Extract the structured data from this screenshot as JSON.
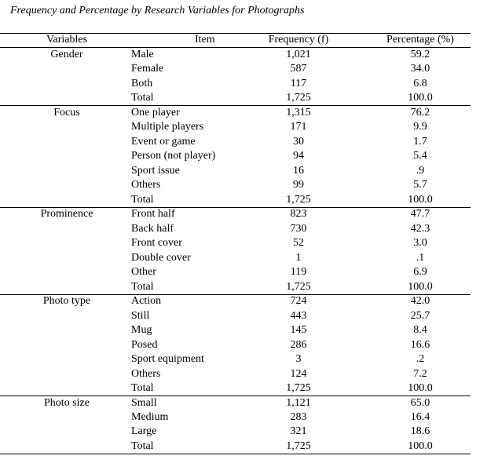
{
  "title": "Frequency and Percentage by Research Variables for Photographs",
  "table": {
    "headers": [
      "Variables",
      "Item",
      "Frequency (f)",
      "Percentage (%)"
    ],
    "groups": [
      {
        "variable": "Gender",
        "rows": [
          [
            "Male",
            "1,021",
            "59.2"
          ],
          [
            "Female",
            "587",
            "34.0"
          ],
          [
            "Both",
            "117",
            "6.8"
          ],
          [
            "Total",
            "1,725",
            "100.0"
          ]
        ]
      },
      {
        "variable": "Focus",
        "rows": [
          [
            "One player",
            "1,315",
            "76.2"
          ],
          [
            "Multiple players",
            "171",
            "9.9"
          ],
          [
            "Event or game",
            "30",
            "1.7"
          ],
          [
            "Person (not player)",
            "94",
            "5.4"
          ],
          [
            "Sport issue",
            "16",
            ".9"
          ],
          [
            "Others",
            "99",
            "5.7"
          ],
          [
            "Total",
            "1,725",
            "100.0"
          ]
        ]
      },
      {
        "variable": "Prominence",
        "rows": [
          [
            "Front half",
            "823",
            "47.7"
          ],
          [
            "Back half",
            "730",
            "42.3"
          ],
          [
            "Front cover",
            "52",
            "3.0"
          ],
          [
            "Double cover",
            "1",
            ".1"
          ],
          [
            "Other",
            "119",
            "6.9"
          ],
          [
            "Total",
            "1,725",
            "100.0"
          ]
        ]
      },
      {
        "variable": "Photo type",
        "rows": [
          [
            "Action",
            "724",
            "42.0"
          ],
          [
            "Still",
            "443",
            "25.7"
          ],
          [
            "Mug",
            "145",
            "8.4"
          ],
          [
            "Posed",
            "286",
            "16.6"
          ],
          [
            "Sport equipment",
            "3",
            ".2"
          ],
          [
            "Others",
            "124",
            "7.2"
          ],
          [
            "Total",
            "1,725",
            "100.0"
          ]
        ]
      },
      {
        "variable": "Photo size",
        "rows": [
          [
            "Small",
            "1,121",
            "65.0"
          ],
          [
            "Medium",
            "283",
            "16.4"
          ],
          [
            "Large",
            "321",
            "18.6"
          ],
          [
            "Total",
            "1,725",
            "100.0"
          ]
        ]
      }
    ]
  }
}
